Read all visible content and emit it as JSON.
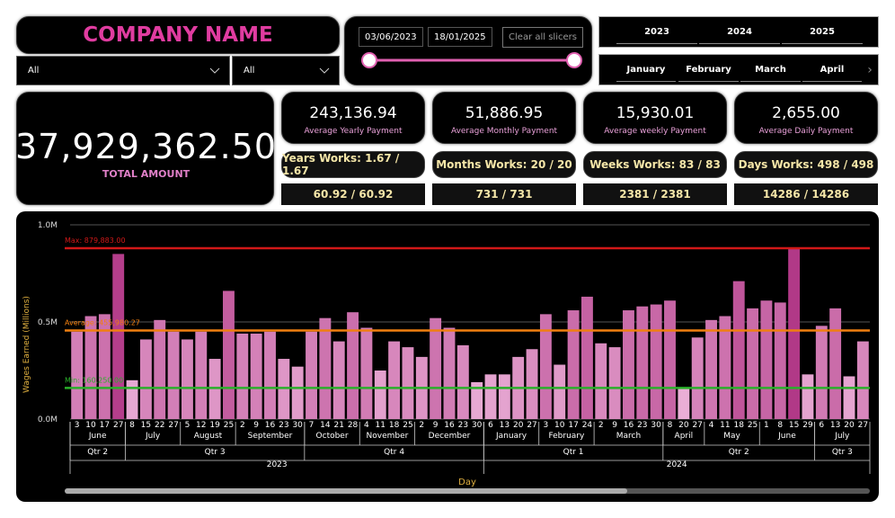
{
  "header": {
    "title": "COMPANY NAME",
    "dropdowns": [
      "All",
      "All"
    ],
    "start_date": "03/06/2023",
    "end_date": "18/01/2025",
    "clear_button": "Clear all slicers",
    "years": [
      "2023",
      "2024",
      "2025"
    ],
    "months": [
      "January",
      "February",
      "March",
      "April"
    ]
  },
  "kpis": {
    "total": {
      "value": "37,929,362.50",
      "label": "TOTAL AMOUNT"
    },
    "cards": [
      {
        "value": "243,136.94",
        "label": "Average Yearly Payment",
        "works": "Years Works: 1.67 / 1.67",
        "ratio": "60.92 / 60.92"
      },
      {
        "value": "51,886.95",
        "label": "Average Monthly Payment",
        "works": "Months Works: 20 / 20",
        "ratio": "731 / 731"
      },
      {
        "value": "15,930.01",
        "label": "Average weekly Payment",
        "works": "Weeks Works: 83 / 83",
        "ratio": "2381 / 2381"
      },
      {
        "value": "2,655.00",
        "label": "Average Daily Payment",
        "works": "Days Works: 498 / 498",
        "ratio": "14286 / 14286"
      }
    ]
  },
  "chart_data": {
    "type": "bar",
    "y_label": "Wages Earned (Millions)",
    "x_label": "Day",
    "ylim": [
      0,
      1
    ],
    "yticks": [
      {
        "value": 0,
        "label": "0.0M"
      },
      {
        "value": 0.5,
        "label": "0.5M"
      },
      {
        "value": 1,
        "label": "1.0M"
      }
    ],
    "bar_color_low": "#f6c8e8",
    "bar_color_high": "#a8267a",
    "reference_lines": [
      {
        "label": "Max: 879,883.00",
        "value": 0.879883,
        "color": "#d01818"
      },
      {
        "label": "Average: 455,980.27",
        "value": 0.45598027,
        "color": "#f07f10"
      },
      {
        "label": "Min: 160,250.00",
        "value": 0.16025,
        "color": "#2ab02a"
      }
    ],
    "years": [
      {
        "label": "2023",
        "quarters": [
          {
            "label": "Qtr 2",
            "months": [
              {
                "label": "June",
                "days": [
                  "3",
                  "10",
                  "17",
                  "27"
                ],
                "values": [
                  0.45,
                  0.53,
                  0.54,
                  0.85
                ]
              }
            ]
          },
          {
            "label": "Qtr 3",
            "months": [
              {
                "label": "July",
                "days": [
                  "8",
                  "15",
                  "22",
                  "27"
                ],
                "values": [
                  0.2,
                  0.41,
                  0.51,
                  0.45
                ]
              },
              {
                "label": "August",
                "days": [
                  "5",
                  "12",
                  "19",
                  "25"
                ],
                "values": [
                  0.41,
                  0.45,
                  0.31,
                  0.66
                ]
              },
              {
                "label": "September",
                "days": [
                  "2",
                  "9",
                  "16",
                  "23",
                  "30"
                ],
                "values": [
                  0.44,
                  0.44,
                  0.45,
                  0.31,
                  0.27
                ]
              }
            ]
          },
          {
            "label": "Qtr 4",
            "months": [
              {
                "label": "October",
                "days": [
                  "7",
                  "14",
                  "21",
                  "28"
                ],
                "values": [
                  0.45,
                  0.52,
                  0.4,
                  0.55
                ]
              },
              {
                "label": "November",
                "days": [
                  "4",
                  "11",
                  "18",
                  "25"
                ],
                "values": [
                  0.47,
                  0.25,
                  0.4,
                  0.37
                ]
              },
              {
                "label": "December",
                "days": [
                  "2",
                  "9",
                  "16",
                  "23",
                  "30"
                ],
                "values": [
                  0.32,
                  0.52,
                  0.47,
                  0.38,
                  0.19
                ]
              }
            ]
          }
        ]
      },
      {
        "label": "2024",
        "quarters": [
          {
            "label": "Qtr 1",
            "months": [
              {
                "label": "January",
                "days": [
                  "6",
                  "13",
                  "20",
                  "27"
                ],
                "values": [
                  0.23,
                  0.23,
                  0.32,
                  0.36
                ]
              },
              {
                "label": "February",
                "days": [
                  "3",
                  "10",
                  "17",
                  "24"
                ],
                "values": [
                  0.54,
                  0.28,
                  0.56,
                  0.63
                ]
              },
              {
                "label": "March",
                "days": [
                  "2",
                  "9",
                  "16",
                  "23",
                  "30"
                ],
                "values": [
                  0.39,
                  0.37,
                  0.56,
                  0.58,
                  0.59
                ]
              }
            ]
          },
          {
            "label": "Qtr 2",
            "months": [
              {
                "label": "April",
                "days": [
                  "8",
                  "20",
                  "27"
                ],
                "values": [
                  0.61,
                  0.16,
                  0.42
                ]
              },
              {
                "label": "May",
                "days": [
                  "4",
                  "11",
                  "18",
                  "25"
                ],
                "values": [
                  0.51,
                  0.53,
                  0.71,
                  0.57
                ]
              },
              {
                "label": "June",
                "days": [
                  "1",
                  "8",
                  "15",
                  "29"
                ],
                "values": [
                  0.61,
                  0.6,
                  0.88,
                  0.23
                ]
              }
            ]
          },
          {
            "label": "Qtr 3",
            "months": [
              {
                "label": "July",
                "days": [
                  "6",
                  "13",
                  "20",
                  "27"
                ],
                "values": [
                  0.48,
                  0.57,
                  0.22,
                  0.4
                ]
              }
            ]
          }
        ]
      }
    ]
  }
}
